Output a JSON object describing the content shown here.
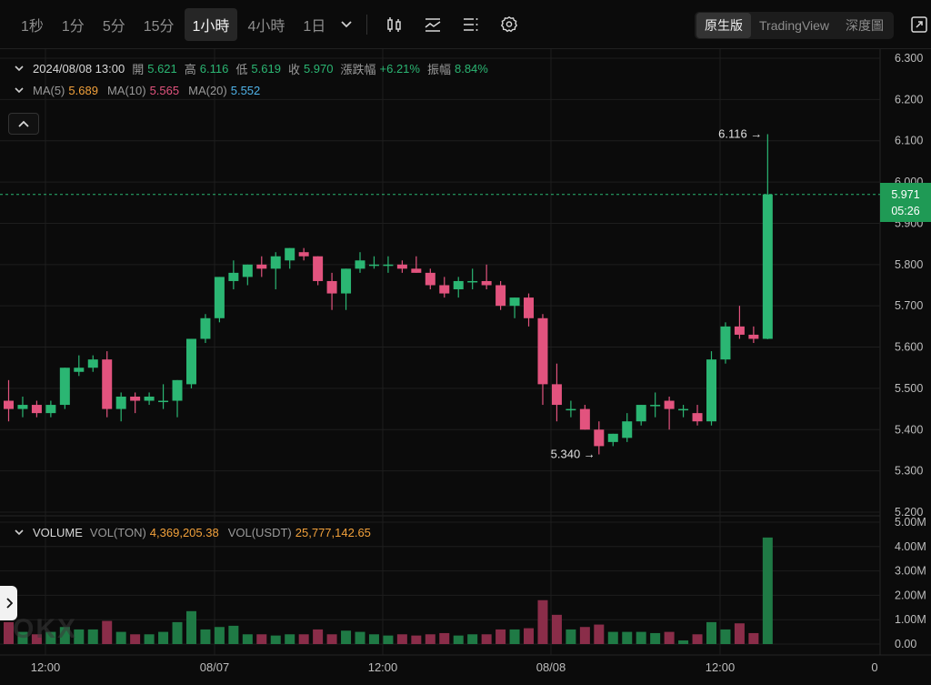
{
  "toolbar": {
    "timeframes": [
      "1秒",
      "1分",
      "5分",
      "15分",
      "1小時",
      "4小時",
      "1日"
    ],
    "active_timeframe": "1小時",
    "view_options": [
      "原生版",
      "TradingView",
      "深度圖"
    ],
    "active_view": "原生版"
  },
  "ohlc": {
    "datetime": "2024/08/08 13:00",
    "open_label": "開",
    "open": "5.621",
    "high_label": "高",
    "high": "6.116",
    "low_label": "低",
    "low": "5.619",
    "close_label": "收",
    "close": "5.970",
    "change_label": "漲跌幅",
    "change": "+6.21%",
    "amplitude_label": "振幅",
    "amplitude": "8.84%"
  },
  "ma": {
    "ma5_label": "MA(5)",
    "ma5": "5.689",
    "ma10_label": "MA(10)",
    "ma10": "5.565",
    "ma20_label": "MA(20)",
    "ma20": "5.552"
  },
  "volume_legend": {
    "title": "VOLUME",
    "vol_ton_label": "VOL(TON)",
    "vol_ton": "4,369,205.38",
    "vol_usdt_label": "VOL(USDT)",
    "vol_usdt": "25,777,142.65"
  },
  "current_price": {
    "price": "5.971",
    "countdown": "05:26"
  },
  "annotations": {
    "high": "6.116 →",
    "low": "5.340 →"
  },
  "watermark": "OKX",
  "colors": {
    "up": "#2bb673",
    "down": "#e2537e",
    "up_volume": "#1f7a45",
    "down_volume": "#8a2d49",
    "background": "#0b0b0b",
    "grid": "#1e1e1e"
  },
  "chart_data": {
    "type": "candlestick",
    "price_axis_ticks": [
      "6.300",
      "6.200",
      "6.100",
      "6.000",
      "5.900",
      "5.800",
      "5.700",
      "5.600",
      "5.500",
      "5.400",
      "5.300",
      "5.200"
    ],
    "volume_axis_ticks": [
      "5.00M",
      "4.00M",
      "3.00M",
      "2.00M",
      "1.00M",
      "0.00"
    ],
    "time_axis_labels": [
      "12:00",
      "08/07",
      "12:00",
      "08/08",
      "12:00",
      "0"
    ],
    "ylim": [
      5.2,
      6.3
    ],
    "candles": [
      {
        "o": 5.47,
        "h": 5.52,
        "l": 5.42,
        "c": 5.45
      },
      {
        "o": 5.45,
        "h": 5.48,
        "l": 5.43,
        "c": 5.46
      },
      {
        "o": 5.46,
        "h": 5.47,
        "l": 5.43,
        "c": 5.44
      },
      {
        "o": 5.44,
        "h": 5.47,
        "l": 5.43,
        "c": 5.46
      },
      {
        "o": 5.46,
        "h": 5.55,
        "l": 5.45,
        "c": 5.55
      },
      {
        "o": 5.54,
        "h": 5.58,
        "l": 5.53,
        "c": 5.55
      },
      {
        "o": 5.55,
        "h": 5.58,
        "l": 5.54,
        "c": 5.57
      },
      {
        "o": 5.57,
        "h": 5.59,
        "l": 5.43,
        "c": 5.45
      },
      {
        "o": 5.45,
        "h": 5.49,
        "l": 5.42,
        "c": 5.48
      },
      {
        "o": 5.48,
        "h": 5.49,
        "l": 5.44,
        "c": 5.47
      },
      {
        "o": 5.47,
        "h": 5.49,
        "l": 5.46,
        "c": 5.48
      },
      {
        "o": 5.47,
        "h": 5.51,
        "l": 5.45,
        "c": 5.47
      },
      {
        "o": 5.47,
        "h": 5.52,
        "l": 5.43,
        "c": 5.52
      },
      {
        "o": 5.51,
        "h": 5.62,
        "l": 5.5,
        "c": 5.62
      },
      {
        "o": 5.62,
        "h": 5.68,
        "l": 5.61,
        "c": 5.67
      },
      {
        "o": 5.67,
        "h": 5.77,
        "l": 5.66,
        "c": 5.77
      },
      {
        "o": 5.76,
        "h": 5.81,
        "l": 5.74,
        "c": 5.78
      },
      {
        "o": 5.77,
        "h": 5.8,
        "l": 5.75,
        "c": 5.8
      },
      {
        "o": 5.8,
        "h": 5.82,
        "l": 5.77,
        "c": 5.79
      },
      {
        "o": 5.79,
        "h": 5.83,
        "l": 5.74,
        "c": 5.82
      },
      {
        "o": 5.81,
        "h": 5.84,
        "l": 5.79,
        "c": 5.84
      },
      {
        "o": 5.83,
        "h": 5.84,
        "l": 5.81,
        "c": 5.82
      },
      {
        "o": 5.82,
        "h": 5.82,
        "l": 5.75,
        "c": 5.76
      },
      {
        "o": 5.76,
        "h": 5.78,
        "l": 5.69,
        "c": 5.73
      },
      {
        "o": 5.73,
        "h": 5.79,
        "l": 5.69,
        "c": 5.79
      },
      {
        "o": 5.79,
        "h": 5.83,
        "l": 5.78,
        "c": 5.81
      },
      {
        "o": 5.8,
        "h": 5.82,
        "l": 5.79,
        "c": 5.8
      },
      {
        "o": 5.8,
        "h": 5.82,
        "l": 5.78,
        "c": 5.8
      },
      {
        "o": 5.8,
        "h": 5.81,
        "l": 5.78,
        "c": 5.79
      },
      {
        "o": 5.79,
        "h": 5.82,
        "l": 5.78,
        "c": 5.78
      },
      {
        "o": 5.78,
        "h": 5.79,
        "l": 5.74,
        "c": 5.75
      },
      {
        "o": 5.75,
        "h": 5.77,
        "l": 5.72,
        "c": 5.73
      },
      {
        "o": 5.74,
        "h": 5.77,
        "l": 5.72,
        "c": 5.76
      },
      {
        "o": 5.76,
        "h": 5.79,
        "l": 5.74,
        "c": 5.76
      },
      {
        "o": 5.76,
        "h": 5.8,
        "l": 5.74,
        "c": 5.75
      },
      {
        "o": 5.75,
        "h": 5.76,
        "l": 5.69,
        "c": 5.7
      },
      {
        "o": 5.7,
        "h": 5.72,
        "l": 5.67,
        "c": 5.72
      },
      {
        "o": 5.72,
        "h": 5.73,
        "l": 5.65,
        "c": 5.67
      },
      {
        "o": 5.67,
        "h": 5.68,
        "l": 5.46,
        "c": 5.51
      },
      {
        "o": 5.51,
        "h": 5.56,
        "l": 5.42,
        "c": 5.46
      },
      {
        "o": 5.45,
        "h": 5.47,
        "l": 5.43,
        "c": 5.45
      },
      {
        "o": 5.45,
        "h": 5.46,
        "l": 5.4,
        "c": 5.4
      },
      {
        "o": 5.4,
        "h": 5.42,
        "l": 5.34,
        "c": 5.36
      },
      {
        "o": 5.37,
        "h": 5.39,
        "l": 5.36,
        "c": 5.39
      },
      {
        "o": 5.38,
        "h": 5.44,
        "l": 5.37,
        "c": 5.42
      },
      {
        "o": 5.42,
        "h": 5.46,
        "l": 5.41,
        "c": 5.46
      },
      {
        "o": 5.46,
        "h": 5.49,
        "l": 5.43,
        "c": 5.46
      },
      {
        "o": 5.47,
        "h": 5.48,
        "l": 5.4,
        "c": 5.45
      },
      {
        "o": 5.45,
        "h": 5.46,
        "l": 5.43,
        "c": 5.45
      },
      {
        "o": 5.44,
        "h": 5.46,
        "l": 5.41,
        "c": 5.42
      },
      {
        "o": 5.42,
        "h": 5.59,
        "l": 5.41,
        "c": 5.57
      },
      {
        "o": 5.57,
        "h": 5.66,
        "l": 5.56,
        "c": 5.65
      },
      {
        "o": 5.65,
        "h": 5.7,
        "l": 5.62,
        "c": 5.63
      },
      {
        "o": 5.63,
        "h": 5.65,
        "l": 5.61,
        "c": 5.62
      },
      {
        "o": 5.62,
        "h": 6.116,
        "l": 5.619,
        "c": 5.97
      }
    ],
    "volumes": [
      0.9,
      0.5,
      0.4,
      0.5,
      0.7,
      0.6,
      0.6,
      0.95,
      0.5,
      0.4,
      0.4,
      0.5,
      0.9,
      1.35,
      0.6,
      0.7,
      0.75,
      0.4,
      0.4,
      0.35,
      0.4,
      0.4,
      0.6,
      0.4,
      0.55,
      0.5,
      0.4,
      0.35,
      0.4,
      0.35,
      0.4,
      0.45,
      0.35,
      0.4,
      0.4,
      0.6,
      0.6,
      0.65,
      1.8,
      1.2,
      0.6,
      0.7,
      0.8,
      0.5,
      0.5,
      0.5,
      0.45,
      0.5,
      0.15,
      0.4,
      0.9,
      0.6,
      0.85,
      0.45,
      4.37
    ]
  }
}
